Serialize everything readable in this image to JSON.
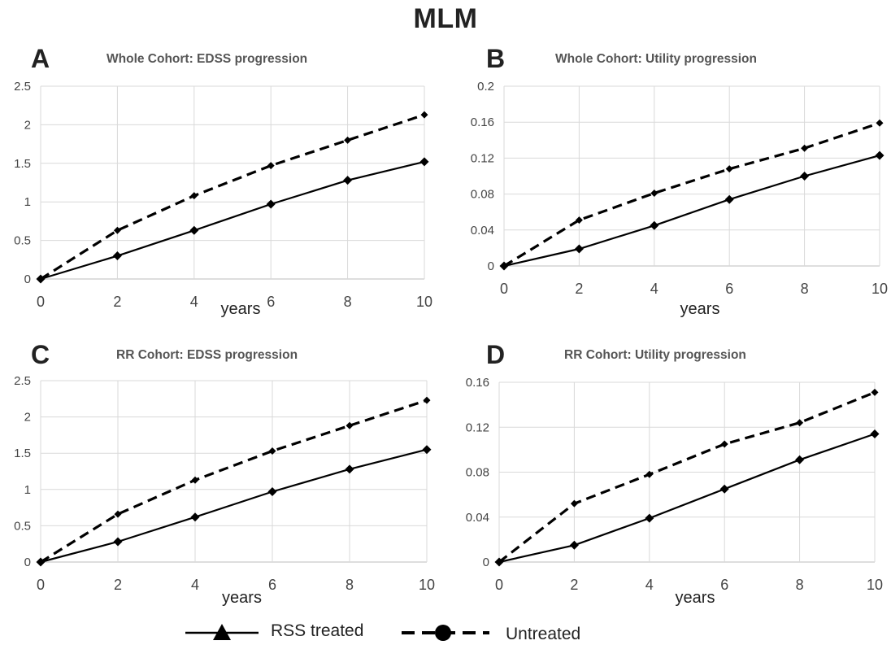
{
  "figure": {
    "title": "MLM"
  },
  "legend": {
    "items": [
      {
        "label": "RSS treated",
        "marker": "triangle",
        "line": "solid"
      },
      {
        "label": "Untreated",
        "marker": "circle",
        "line": "dashed"
      }
    ]
  },
  "chart_data": [
    {
      "panel": "A",
      "type": "line",
      "title": "Whole Cohort: EDSS progression",
      "xlabel": "years",
      "ylabel": "",
      "x": [
        0,
        2,
        4,
        6,
        8,
        10
      ],
      "xlim": [
        0,
        10
      ],
      "ylim": [
        0,
        2.5
      ],
      "yticks": [
        0,
        0.5,
        1,
        1.5,
        2,
        2.5
      ],
      "ytick_labels": [
        "0",
        "0.5",
        "1",
        "1.5",
        "2",
        "2.5"
      ],
      "xtick_labels": [
        "0",
        "2",
        "4",
        "6",
        "8",
        "10"
      ],
      "grid": true,
      "series": [
        {
          "name": "RSS treated",
          "style": "solid",
          "values": [
            0,
            0.3,
            0.63,
            0.97,
            1.28,
            1.52
          ]
        },
        {
          "name": "Untreated",
          "style": "dashed",
          "values": [
            0,
            0.63,
            1.08,
            1.47,
            1.8,
            2.13
          ]
        }
      ]
    },
    {
      "panel": "B",
      "type": "line",
      "title": "Whole Cohort: Utility progression",
      "xlabel": "years",
      "ylabel": "",
      "x": [
        0,
        2,
        4,
        6,
        8,
        10
      ],
      "xlim": [
        0,
        10
      ],
      "ylim": [
        0,
        0.2
      ],
      "yticks": [
        0,
        0.04,
        0.08,
        0.12,
        0.16,
        0.2
      ],
      "ytick_labels": [
        "0",
        "0.04",
        "0.08",
        "0.12",
        "0.16",
        "0.2"
      ],
      "xtick_labels": [
        "0",
        "2",
        "4",
        "6",
        "8",
        "10"
      ],
      "grid": true,
      "series": [
        {
          "name": "RSS treated",
          "style": "solid",
          "values": [
            0,
            0.019,
            0.045,
            0.074,
            0.1,
            0.123
          ]
        },
        {
          "name": "Untreated",
          "style": "dashed",
          "values": [
            0,
            0.051,
            0.081,
            0.108,
            0.131,
            0.159
          ]
        }
      ]
    },
    {
      "panel": "C",
      "type": "line",
      "title": "RR Cohort: EDSS progression",
      "xlabel": "years",
      "ylabel": "",
      "x": [
        0,
        2,
        4,
        6,
        8,
        10
      ],
      "xlim": [
        0,
        10
      ],
      "ylim": [
        0,
        2.5
      ],
      "yticks": [
        0,
        0.5,
        1,
        1.5,
        2,
        2.5
      ],
      "ytick_labels": [
        "0",
        "0.5",
        "1",
        "1.5",
        "2",
        "2.5"
      ],
      "xtick_labels": [
        "0",
        "2",
        "4",
        "6",
        "8",
        "10"
      ],
      "grid": true,
      "series": [
        {
          "name": "RSS treated",
          "style": "solid",
          "values": [
            0,
            0.28,
            0.62,
            0.97,
            1.28,
            1.55
          ]
        },
        {
          "name": "Untreated",
          "style": "dashed",
          "values": [
            0,
            0.66,
            1.13,
            1.53,
            1.88,
            2.23
          ]
        }
      ]
    },
    {
      "panel": "D",
      "type": "line",
      "title": "RR Cohort: Utility progression",
      "xlabel": "years",
      "ylabel": "",
      "x": [
        0,
        2,
        4,
        6,
        8,
        10
      ],
      "xlim": [
        0,
        10
      ],
      "ylim": [
        0,
        0.16
      ],
      "yticks": [
        0,
        0.04,
        0.08,
        0.12,
        0.16
      ],
      "ytick_labels": [
        "0",
        "0.04",
        "0.08",
        "0.12",
        "0.16"
      ],
      "xtick_labels": [
        "0",
        "2",
        "4",
        "6",
        "8",
        "10"
      ],
      "grid": true,
      "series": [
        {
          "name": "RSS treated",
          "style": "solid",
          "values": [
            0,
            0.015,
            0.039,
            0.065,
            0.091,
            0.114
          ]
        },
        {
          "name": "Untreated",
          "style": "dashed",
          "values": [
            0,
            0.052,
            0.078,
            0.105,
            0.124,
            0.151
          ]
        }
      ]
    }
  ]
}
